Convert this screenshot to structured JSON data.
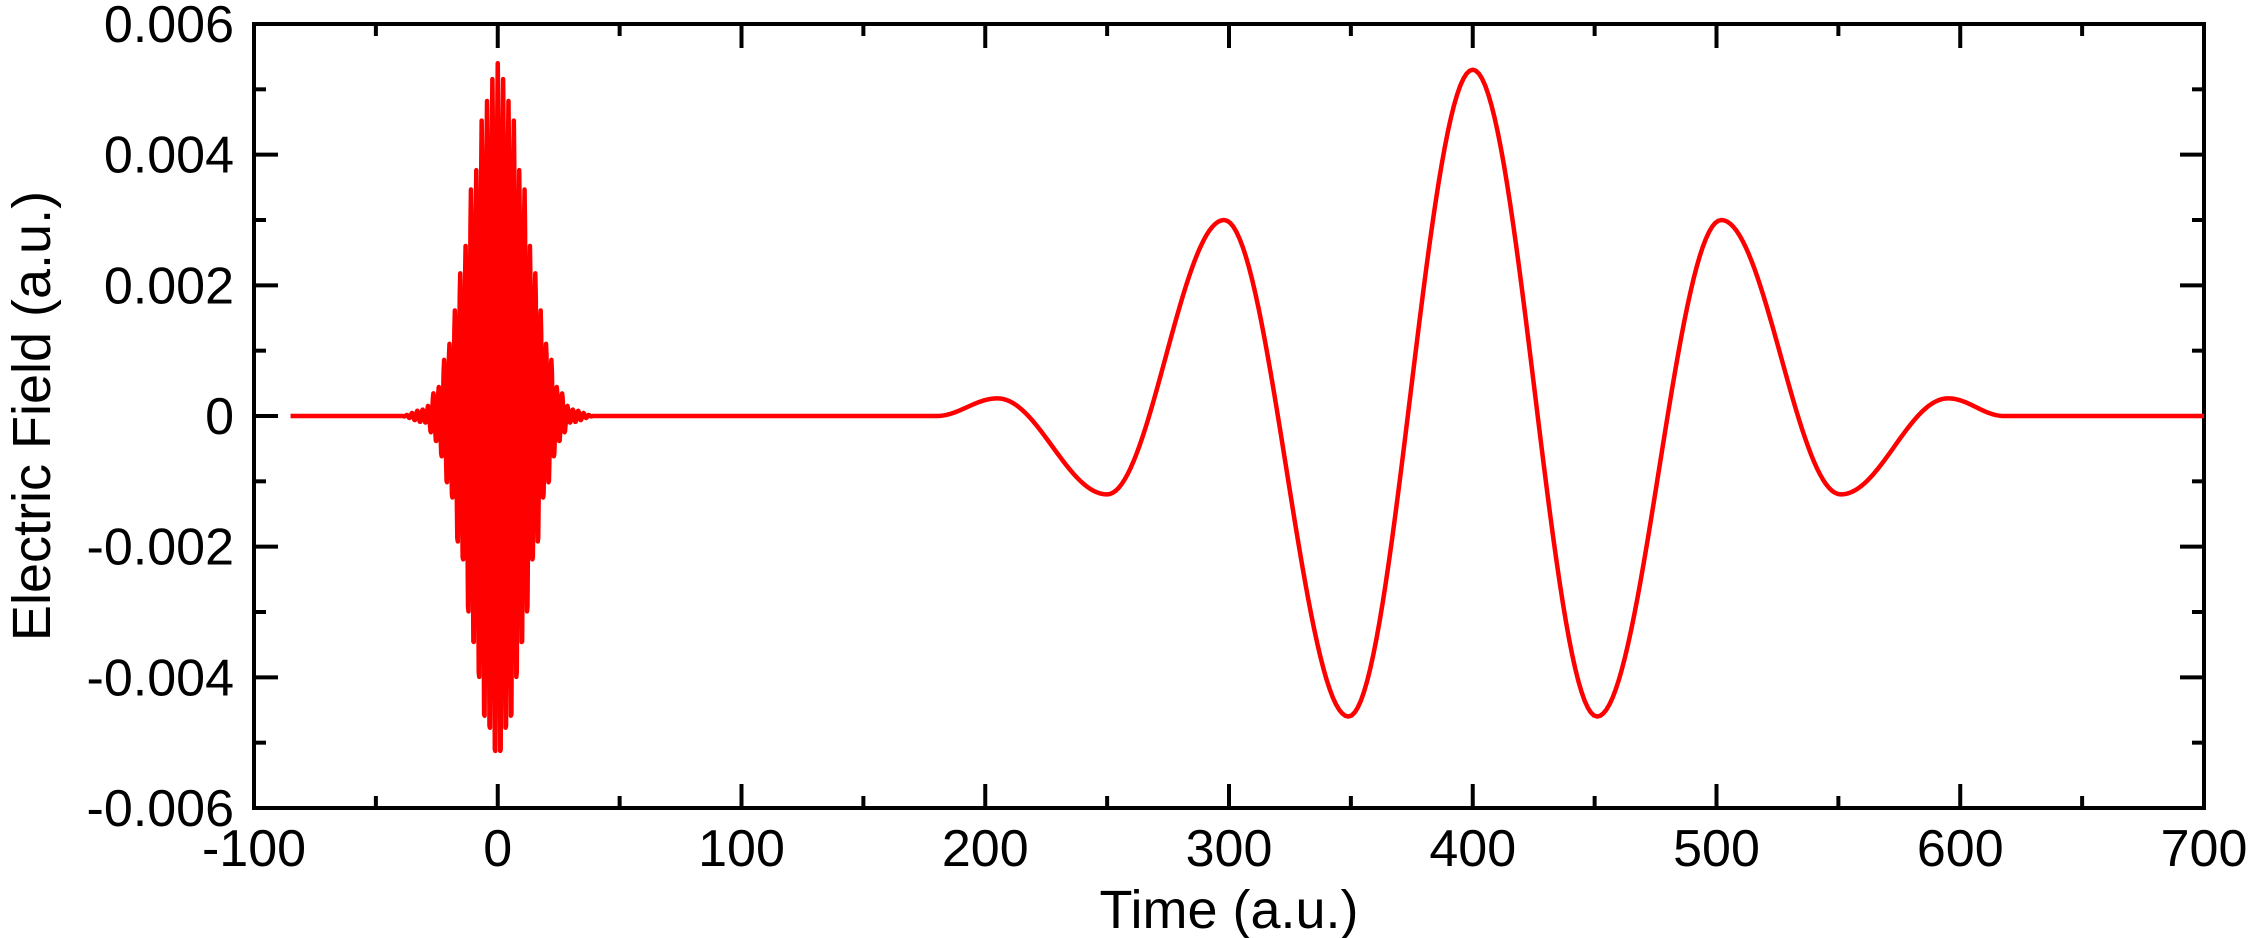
{
  "chart_data": {
    "type": "line",
    "title": "",
    "xlabel": "Time (a.u.)",
    "ylabel": "Electric Field (a.u.)",
    "xlim": [
      -100,
      700
    ],
    "ylim": [
      -0.006,
      0.006
    ],
    "x_ticks": [
      -100,
      0,
      100,
      200,
      300,
      400,
      500,
      600,
      700
    ],
    "x_tick_labels": [
      "-100",
      "0",
      "100",
      "200",
      "300",
      "400",
      "500",
      "600",
      "700"
    ],
    "y_ticks": [
      -0.006,
      -0.004,
      -0.002,
      0,
      0.002,
      0.004,
      0.006
    ],
    "y_tick_labels": [
      "-0.006",
      "-0.004",
      "-0.002",
      "0",
      "0.002",
      "0.004",
      "0.006"
    ],
    "grid": false,
    "legend": "none",
    "series": [
      {
        "color": "#ff0000",
        "x": [
          -85,
          -40,
          -30,
          -25,
          -20,
          -15,
          -10,
          -5,
          0,
          5,
          10,
          15,
          20,
          25,
          30,
          40,
          180,
          205,
          250,
          298,
          349,
          400,
          451,
          502,
          551,
          595,
          618,
          700
        ],
        "y": [
          0,
          0,
          0.0001,
          0.0004,
          0.0011,
          0.0022,
          0.0036,
          0.0048,
          0.0054,
          0.0048,
          0.0036,
          0.0022,
          0.0011,
          0.0004,
          0.0001,
          0,
          0,
          0.00027,
          -0.0012,
          0.003,
          -0.0046,
          0.0053,
          -0.0046,
          0.003,
          -0.0012,
          0.00027,
          0,
          0
        ]
      }
    ]
  }
}
